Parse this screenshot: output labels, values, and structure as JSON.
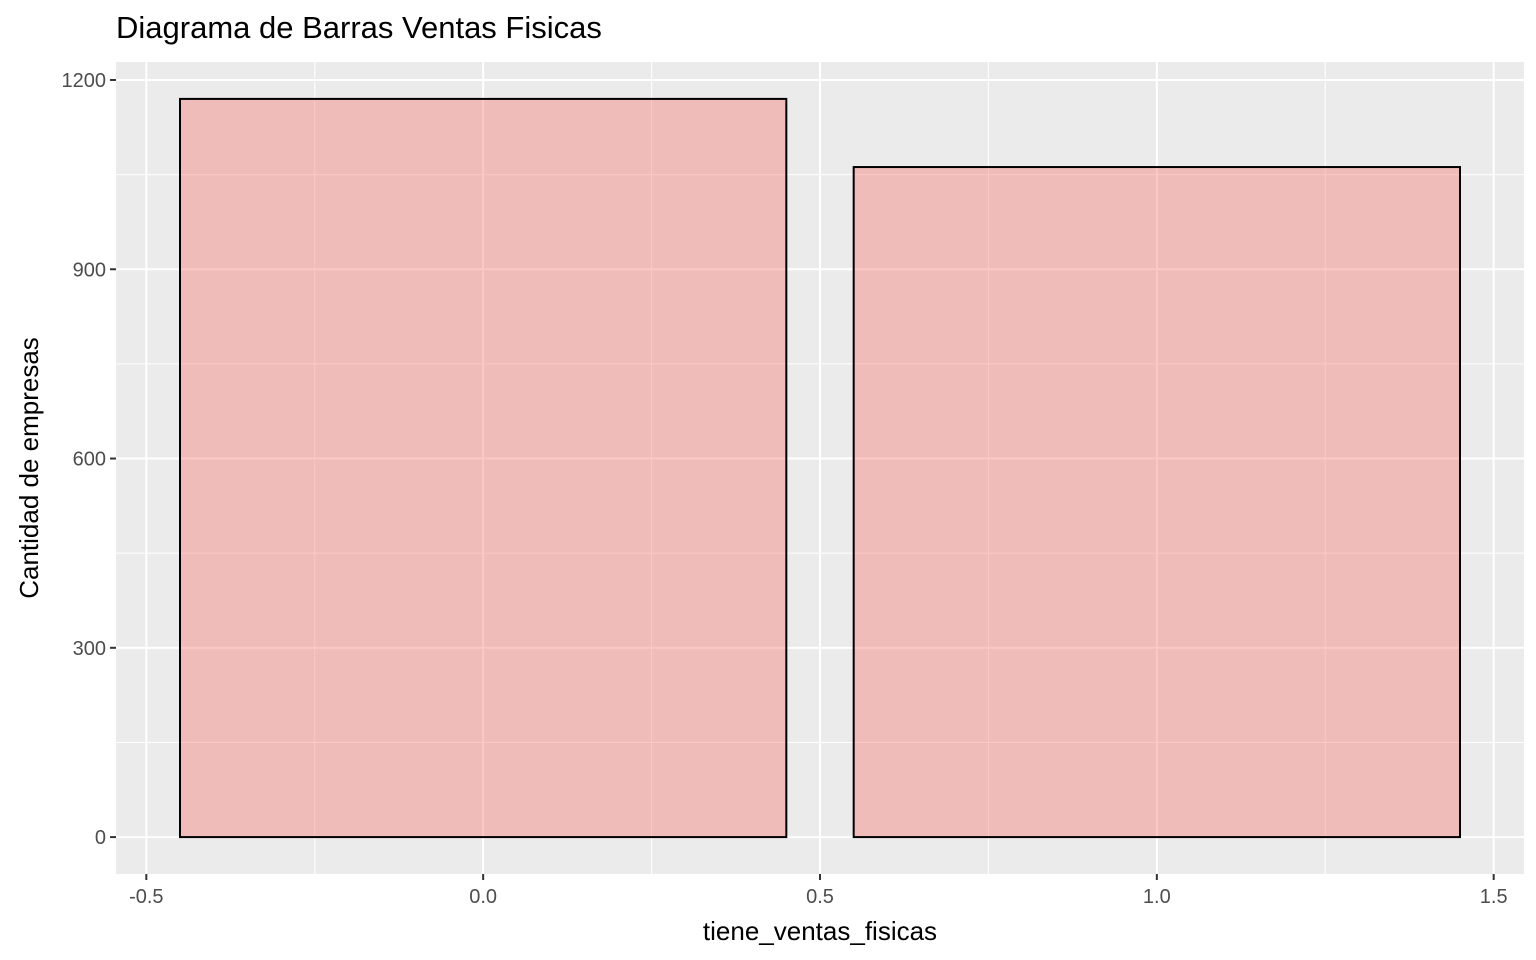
{
  "chart_data": {
    "type": "bar",
    "title": "Diagrama de Barras Ventas Fisicas",
    "xlabel": "tiene_ventas_fisicas",
    "ylabel": "Cantidad de empresas",
    "x": [
      0,
      1
    ],
    "values": [
      1170,
      1062
    ],
    "bar_width": 0.9,
    "xlim": [
      -0.545,
      1.545
    ],
    "ylim": [
      -58.5,
      1228.5
    ],
    "x_major_ticks": [
      -0.5,
      0.0,
      0.5,
      1.0,
      1.5
    ],
    "x_tick_labels": [
      "-0.5",
      "0.0",
      "0.5",
      "1.0",
      "1.5"
    ],
    "x_minor_ticks": [
      -0.25,
      0.25,
      0.75,
      1.25
    ],
    "y_major_ticks": [
      0,
      300,
      600,
      900,
      1200
    ],
    "y_tick_labels": [
      "0",
      "300",
      "600",
      "900",
      "1200"
    ],
    "y_minor_ticks": [
      150,
      450,
      750,
      1050
    ],
    "grid": true,
    "legend": "none",
    "colors": {
      "panel_background": "#ebebeb",
      "grid_major": "#ffffff",
      "bar_fill": "#f8766d",
      "bar_fill_opacity": 0.4,
      "bar_outline": "#000000",
      "tick_text": "#4d4d4d",
      "tick_mark": "#333333"
    }
  }
}
